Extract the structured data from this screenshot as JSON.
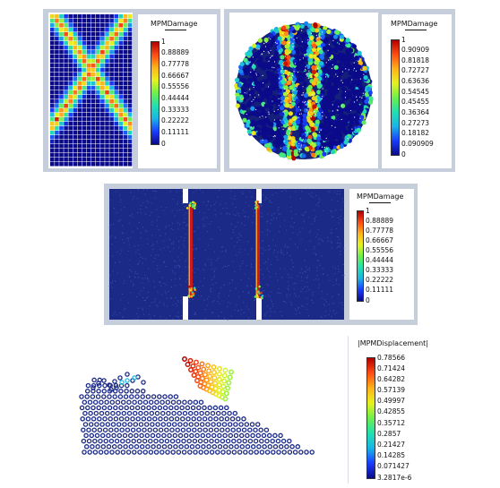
{
  "colors": {
    "background": "#ffffff",
    "frame": "#c7cedb",
    "domain_blue": "#1a2a8e",
    "scale": [
      "#0a0a8a",
      "#1a3cff",
      "#19b5e6",
      "#22e0b0",
      "#6df04a",
      "#e6f21e",
      "#ffb31a",
      "#ff4d14",
      "#b30000"
    ]
  },
  "panels": [
    {
      "id": "top-left",
      "legend": {
        "title": "MPMDamage",
        "ticks": [
          "1",
          "0.88889",
          "0.77778",
          "0.66667",
          "0.55556",
          "0.44444",
          "0.33333",
          "0.22222",
          "0.11111",
          "0"
        ]
      }
    },
    {
      "id": "top-right",
      "legend": {
        "title": "MPMDamage",
        "ticks": [
          "1",
          "0.90909",
          "0.81818",
          "0.72727",
          "0.63636",
          "0.54545",
          "0.45455",
          "0.36364",
          "0.27273",
          "0.18182",
          "0.090909",
          "0"
        ]
      }
    },
    {
      "id": "middle",
      "legend": {
        "title": "MPMDamage",
        "ticks": [
          "1",
          "0.88889",
          "0.77778",
          "0.66667",
          "0.55556",
          "0.44444",
          "0.33333",
          "0.22222",
          "0.11111",
          "0"
        ]
      }
    },
    {
      "id": "bottom",
      "legend": {
        "title": "|MPMDisplacement|",
        "ticks": [
          "0.78566",
          "0.71424",
          "0.64282",
          "0.57139",
          "0.49997",
          "0.42855",
          "0.35712",
          "0.2857",
          "0.21427",
          "0.14285",
          "0.071427",
          "3.2817e-6"
        ]
      }
    }
  ]
}
